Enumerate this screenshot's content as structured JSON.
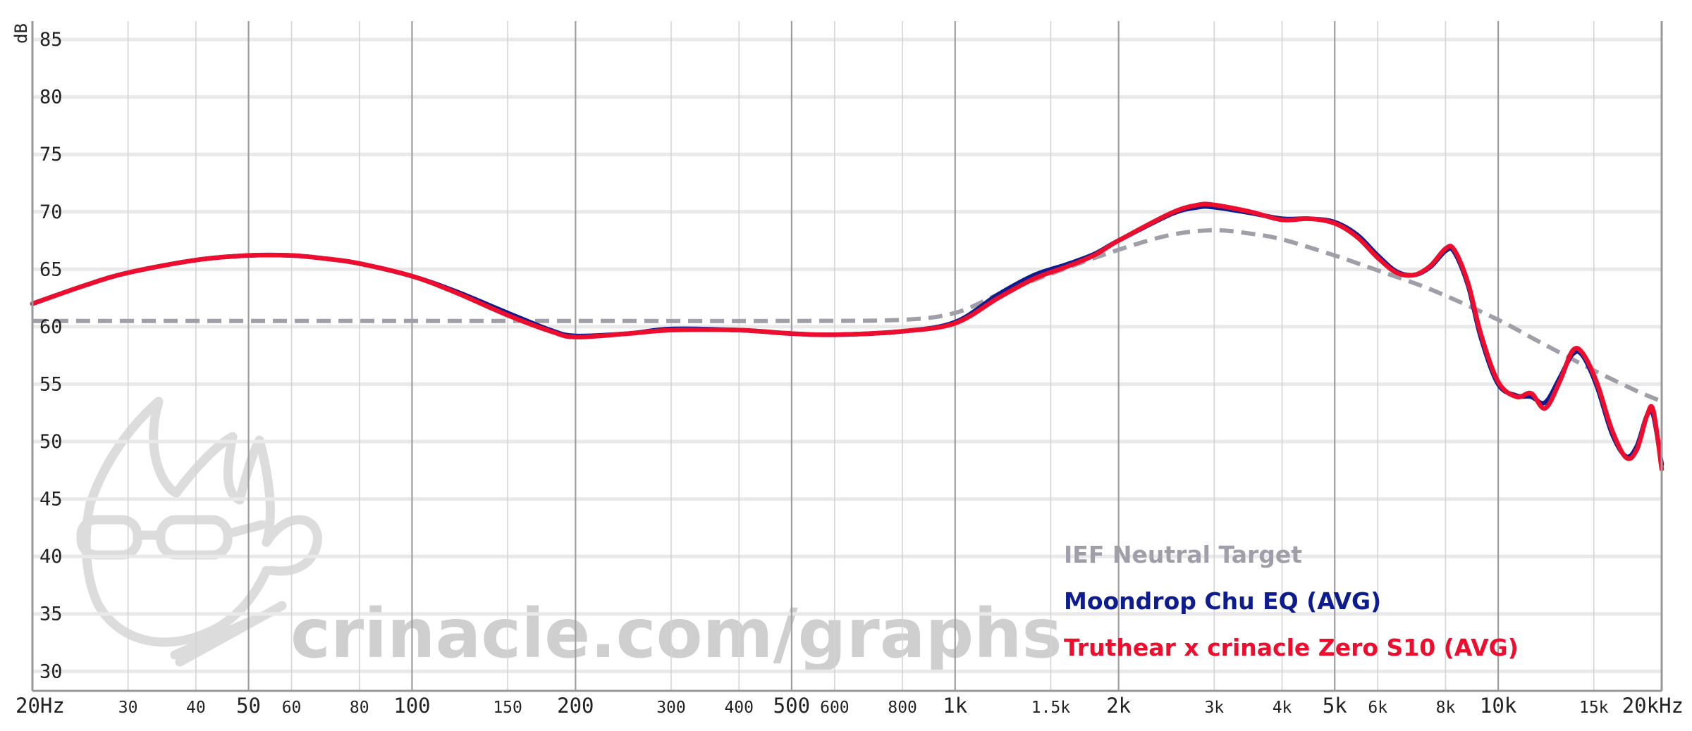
{
  "chart_data": {
    "type": "line",
    "ylabel": "dB",
    "xscale": "log",
    "xlim": [
      20,
      20000
    ],
    "ylim": [
      28.3,
      86.6
    ],
    "yticks": [
      "85",
      "80",
      "75",
      "70",
      "65",
      "60",
      "55",
      "50",
      "45",
      "40",
      "35",
      "30"
    ],
    "xticks": [
      {
        "f": 20,
        "label": "20Hz",
        "major": true
      },
      {
        "f": 30,
        "label": "30"
      },
      {
        "f": 40,
        "label": "40"
      },
      {
        "f": 50,
        "label": "50",
        "major": true
      },
      {
        "f": 60,
        "label": "60"
      },
      {
        "f": 80,
        "label": "80"
      },
      {
        "f": 100,
        "label": "100",
        "major": true
      },
      {
        "f": 150,
        "label": "150"
      },
      {
        "f": 200,
        "label": "200",
        "major": true
      },
      {
        "f": 300,
        "label": "300"
      },
      {
        "f": 400,
        "label": "400"
      },
      {
        "f": 500,
        "label": "500",
        "major": true
      },
      {
        "f": 600,
        "label": "600"
      },
      {
        "f": 800,
        "label": "800"
      },
      {
        "f": 1000,
        "label": "1k",
        "major": true
      },
      {
        "f": 1500,
        "label": "1.5k"
      },
      {
        "f": 2000,
        "label": "2k",
        "major": true
      },
      {
        "f": 3000,
        "label": "3k"
      },
      {
        "f": 4000,
        "label": "4k"
      },
      {
        "f": 5000,
        "label": "5k",
        "major": true
      },
      {
        "f": 6000,
        "label": "6k"
      },
      {
        "f": 8000,
        "label": "8k"
      },
      {
        "f": 10000,
        "label": "10k",
        "major": true
      },
      {
        "f": 15000,
        "label": "15k"
      },
      {
        "f": 20000,
        "label": "20kHz",
        "major": true
      }
    ],
    "grid": true,
    "legend_position": "bottom-right",
    "series": [
      {
        "name": "IEF Neutral Target",
        "color": "#a09fa9",
        "dashed": true,
        "points": [
          [
            20,
            60.5
          ],
          [
            50,
            60.5
          ],
          [
            100,
            60.5
          ],
          [
            200,
            60.5
          ],
          [
            500,
            60.5
          ],
          [
            800,
            60.6
          ],
          [
            1000,
            61.2
          ],
          [
            1200,
            62.8
          ],
          [
            1500,
            64.6
          ],
          [
            2000,
            66.7
          ],
          [
            2500,
            68.0
          ],
          [
            3000,
            68.4
          ],
          [
            3500,
            68.1
          ],
          [
            4000,
            67.6
          ],
          [
            5000,
            66.2
          ],
          [
            6000,
            64.9
          ],
          [
            7000,
            63.8
          ],
          [
            8000,
            62.7
          ],
          [
            10000,
            60.6
          ],
          [
            12000,
            58.6
          ],
          [
            15000,
            56.2
          ],
          [
            18000,
            54.4
          ],
          [
            20000,
            53.5
          ]
        ]
      },
      {
        "name": "Moondrop Chu EQ (AVG)",
        "color": "#0d1d8f",
        "dashed": false,
        "points": [
          [
            20,
            62.0
          ],
          [
            25,
            63.6
          ],
          [
            30,
            64.7
          ],
          [
            40,
            65.8
          ],
          [
            50,
            66.2
          ],
          [
            60,
            66.2
          ],
          [
            70,
            65.9
          ],
          [
            80,
            65.5
          ],
          [
            100,
            64.4
          ],
          [
            120,
            63.1
          ],
          [
            150,
            61.2
          ],
          [
            180,
            59.7
          ],
          [
            200,
            59.2
          ],
          [
            250,
            59.4
          ],
          [
            300,
            59.8
          ],
          [
            400,
            59.7
          ],
          [
            500,
            59.4
          ],
          [
            600,
            59.3
          ],
          [
            800,
            59.6
          ],
          [
            1000,
            60.4
          ],
          [
            1200,
            62.8
          ],
          [
            1400,
            64.5
          ],
          [
            1600,
            65.4
          ],
          [
            1800,
            66.3
          ],
          [
            2000,
            67.5
          ],
          [
            2500,
            69.8
          ],
          [
            2800,
            70.4
          ],
          [
            3000,
            70.4
          ],
          [
            3500,
            69.9
          ],
          [
            4000,
            69.4
          ],
          [
            4500,
            69.4
          ],
          [
            5000,
            69.1
          ],
          [
            5500,
            68.0
          ],
          [
            6000,
            66.2
          ],
          [
            6500,
            64.8
          ],
          [
            7000,
            64.5
          ],
          [
            7500,
            65.2
          ],
          [
            8000,
            66.6
          ],
          [
            8300,
            66.5
          ],
          [
            8800,
            63.6
          ],
          [
            9300,
            59.0
          ],
          [
            10000,
            55.0
          ],
          [
            10800,
            54.0
          ],
          [
            11500,
            53.9
          ],
          [
            12200,
            53.4
          ],
          [
            13000,
            55.6
          ],
          [
            13700,
            57.6
          ],
          [
            14300,
            57.5
          ],
          [
            15200,
            54.8
          ],
          [
            16200,
            50.7
          ],
          [
            17200,
            48.7
          ],
          [
            18000,
            49.6
          ],
          [
            18800,
            52.3
          ],
          [
            19300,
            52.3
          ],
          [
            20000,
            48.0
          ]
        ]
      },
      {
        "name": "Truthear x crinacle Zero S10 (AVG)",
        "color": "#ee0d2c",
        "dashed": false,
        "points": [
          [
            20,
            62.0
          ],
          [
            25,
            63.6
          ],
          [
            30,
            64.7
          ],
          [
            40,
            65.8
          ],
          [
            50,
            66.2
          ],
          [
            60,
            66.2
          ],
          [
            70,
            65.9
          ],
          [
            80,
            65.5
          ],
          [
            100,
            64.4
          ],
          [
            120,
            63.0
          ],
          [
            150,
            61.0
          ],
          [
            180,
            59.6
          ],
          [
            200,
            59.1
          ],
          [
            250,
            59.4
          ],
          [
            300,
            59.7
          ],
          [
            400,
            59.7
          ],
          [
            500,
            59.4
          ],
          [
            600,
            59.3
          ],
          [
            800,
            59.6
          ],
          [
            1000,
            60.3
          ],
          [
            1200,
            62.5
          ],
          [
            1400,
            64.2
          ],
          [
            1600,
            65.2
          ],
          [
            1800,
            66.2
          ],
          [
            2000,
            67.5
          ],
          [
            2500,
            69.9
          ],
          [
            2800,
            70.6
          ],
          [
            3000,
            70.6
          ],
          [
            3500,
            70.0
          ],
          [
            4000,
            69.3
          ],
          [
            4500,
            69.4
          ],
          [
            5000,
            69.0
          ],
          [
            5500,
            67.8
          ],
          [
            6000,
            66.0
          ],
          [
            6500,
            64.7
          ],
          [
            7000,
            64.5
          ],
          [
            7500,
            65.3
          ],
          [
            8000,
            66.8
          ],
          [
            8300,
            66.7
          ],
          [
            8800,
            63.8
          ],
          [
            9300,
            59.3
          ],
          [
            10000,
            55.2
          ],
          [
            10800,
            53.9
          ],
          [
            11500,
            54.2
          ],
          [
            12200,
            52.9
          ],
          [
            13000,
            55.3
          ],
          [
            13700,
            57.9
          ],
          [
            14300,
            57.7
          ],
          [
            15200,
            55.1
          ],
          [
            16200,
            51.0
          ],
          [
            17200,
            48.6
          ],
          [
            18000,
            49.3
          ],
          [
            18800,
            52.3
          ],
          [
            19300,
            52.7
          ],
          [
            20000,
            47.6
          ]
        ]
      }
    ]
  },
  "watermark": {
    "text": "crinacle.com/graphs"
  }
}
